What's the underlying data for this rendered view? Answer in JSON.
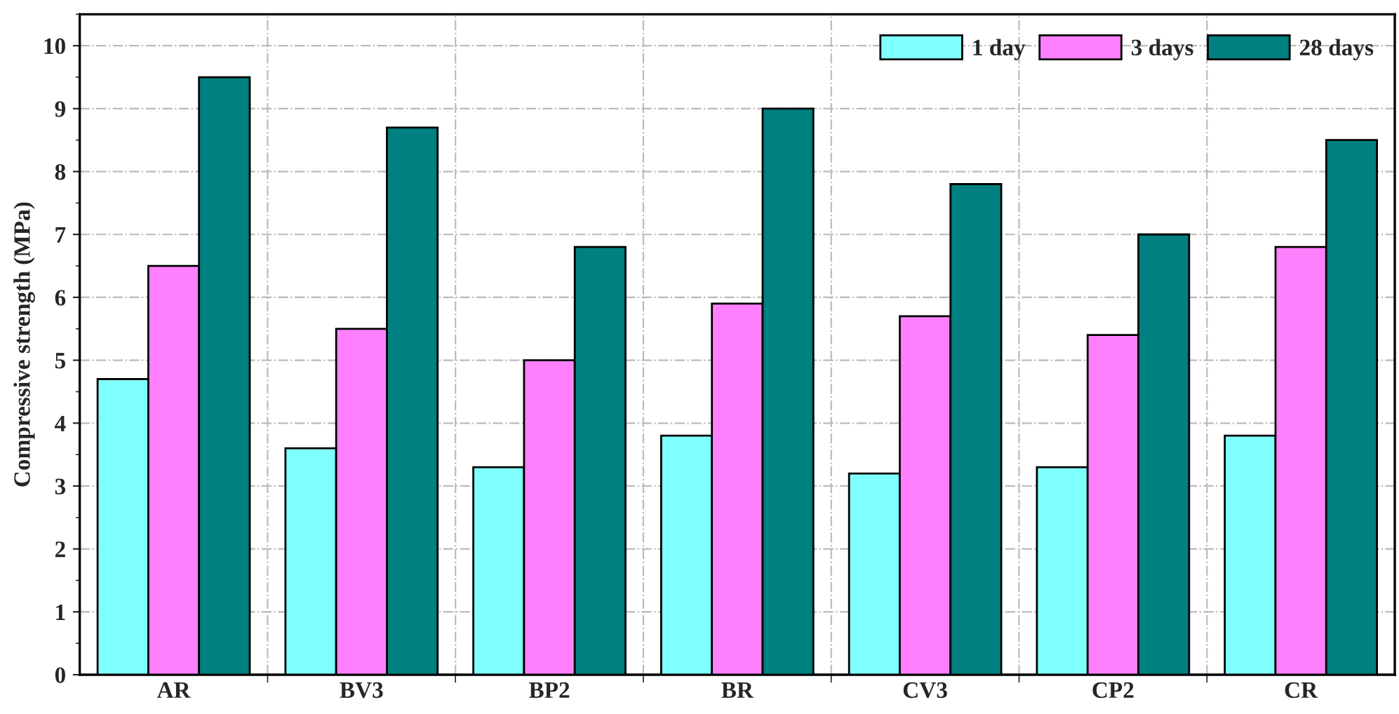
{
  "chart_data": {
    "type": "bar",
    "ylabel": "Compressive strength (MPa)",
    "categories": [
      "AR",
      "BV3",
      "BP2",
      "BR",
      "CV3",
      "CP2",
      "CR"
    ],
    "series": [
      {
        "name": "1 day",
        "color": "#80ffff",
        "values": [
          4.7,
          3.6,
          3.3,
          3.8,
          3.2,
          3.3,
          3.8
        ]
      },
      {
        "name": "3 days",
        "color": "#ff80ff",
        "values": [
          6.5,
          5.5,
          5.0,
          5.9,
          5.7,
          5.4,
          6.8
        ]
      },
      {
        "name": "28 days",
        "color": "#008080",
        "values": [
          9.5,
          8.7,
          6.8,
          9.0,
          7.8,
          7.0,
          8.5
        ]
      }
    ],
    "ylim": [
      0,
      10.5
    ],
    "yticks": [
      0,
      1,
      2,
      3,
      4,
      5,
      6,
      7,
      8,
      9,
      10
    ],
    "grid": true,
    "legend": "top right"
  }
}
